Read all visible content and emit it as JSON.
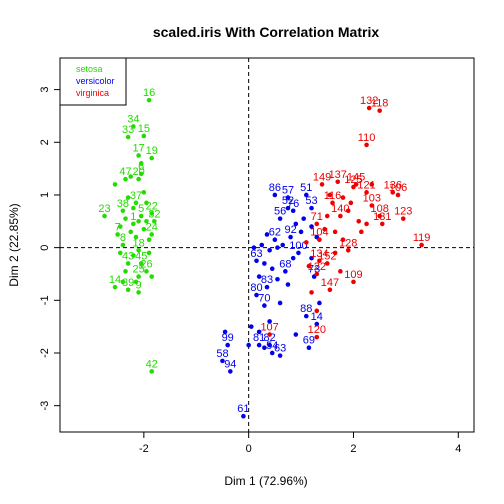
{
  "chart_data": {
    "type": "scatter",
    "title": "scaled.iris With Correlation Matrix",
    "xlabel": "Dim 1 (72.96%)",
    "ylabel": "Dim 2 (22.85%)",
    "xlim": [
      -3.6,
      4.3
    ],
    "ylim": [
      -3.5,
      3.6
    ],
    "xticks": [
      -2,
      0,
      2,
      4
    ],
    "yticks": [
      -3,
      -2,
      -1,
      0,
      1,
      2,
      3
    ],
    "reference_lines": {
      "x": 0,
      "y": 0,
      "style": "dashed"
    },
    "legend": {
      "position": "top-left",
      "entries": [
        {
          "label": "setosa",
          "color": "#22dd00"
        },
        {
          "label": "versicolor",
          "color": "#0000ee"
        },
        {
          "label": "virginica",
          "color": "#ee0000"
        }
      ]
    },
    "series": [
      {
        "name": "setosa",
        "color": "#22dd00",
        "points": [
          {
            "x": -1.9,
            "y": 2.8,
            "label": "16"
          },
          {
            "x": -2.2,
            "y": 2.3,
            "label": "34"
          },
          {
            "x": -2.3,
            "y": 2.1,
            "label": "33"
          },
          {
            "x": -2.0,
            "y": 2.12,
            "label": "15"
          },
          {
            "x": -2.1,
            "y": 1.75,
            "label": "17"
          },
          {
            "x": -1.85,
            "y": 1.7,
            "label": "19"
          },
          {
            "x": -2.35,
            "y": 1.3,
            "label": "47"
          },
          {
            "x": -2.1,
            "y": 1.3,
            "label": "20"
          },
          {
            "x": -2.05,
            "y": 1.4,
            "label": "6"
          },
          {
            "x": -2.4,
            "y": 0.7,
            "label": "38"
          },
          {
            "x": -2.75,
            "y": 0.6,
            "label": "23"
          },
          {
            "x": -2.15,
            "y": 0.85,
            "label": "37"
          },
          {
            "x": -2.05,
            "y": 0.6,
            "label": "5"
          },
          {
            "x": -1.85,
            "y": 0.65,
            "label": "22"
          },
          {
            "x": -1.8,
            "y": 0.5,
            "label": "32"
          },
          {
            "x": -2.2,
            "y": 0.45,
            "label": "1"
          },
          {
            "x": -2.5,
            "y": 0.25,
            "label": "7"
          },
          {
            "x": -1.85,
            "y": 0.25,
            "label": "24"
          },
          {
            "x": -2.4,
            "y": 0.05,
            "label": "8"
          },
          {
            "x": -2.1,
            "y": -0.05,
            "label": "18"
          },
          {
            "x": -2.3,
            "y": -0.3,
            "label": "43"
          },
          {
            "x": -2.05,
            "y": -0.3,
            "label": "45"
          },
          {
            "x": -2.1,
            "y": -0.55,
            "label": "25"
          },
          {
            "x": -1.95,
            "y": -0.45,
            "label": "26"
          },
          {
            "x": -2.55,
            "y": -0.75,
            "label": "14"
          },
          {
            "x": -2.3,
            "y": -0.8,
            "label": "39"
          },
          {
            "x": -2.1,
            "y": -0.85,
            "label": "9"
          },
          {
            "x": -1.85,
            "y": -2.35,
            "label": "42"
          },
          {
            "x": -2.25,
            "y": 1.35
          },
          {
            "x": -2.0,
            "y": 1.05
          },
          {
            "x": -2.3,
            "y": 0.95
          },
          {
            "x": -2.55,
            "y": 1.2
          },
          {
            "x": -1.95,
            "y": 0.85
          },
          {
            "x": -2.2,
            "y": 0.75
          },
          {
            "x": -2.35,
            "y": 0.55
          },
          {
            "x": -1.95,
            "y": 0.5
          },
          {
            "x": -2.1,
            "y": 0.5
          },
          {
            "x": -2.25,
            "y": 0.3
          },
          {
            "x": -2.0,
            "y": 0.35
          },
          {
            "x": -1.9,
            "y": 0.15
          },
          {
            "x": -2.45,
            "y": -0.1
          },
          {
            "x": -2.2,
            "y": -0.15
          },
          {
            "x": -1.9,
            "y": -0.1
          },
          {
            "x": -2.35,
            "y": -0.45
          },
          {
            "x": -2.15,
            "y": -0.65
          },
          {
            "x": -1.85,
            "y": -0.55
          },
          {
            "x": -2.4,
            "y": -0.65
          },
          {
            "x": -2.05,
            "y": 1.6
          },
          {
            "x": -2.45,
            "y": 0.4
          },
          {
            "x": -2.15,
            "y": 0.2
          }
        ]
      },
      {
        "name": "versicolor",
        "color": "#0000ee",
        "points": [
          {
            "x": 0.5,
            "y": 1.0,
            "label": "86"
          },
          {
            "x": 0.75,
            "y": 0.95,
            "label": "57"
          },
          {
            "x": 1.1,
            "y": 1.0,
            "label": "51"
          },
          {
            "x": 0.75,
            "y": 0.75,
            "label": "52"
          },
          {
            "x": 0.85,
            "y": 0.7,
            "label": "76"
          },
          {
            "x": 1.2,
            "y": 0.75,
            "label": "53"
          },
          {
            "x": 0.6,
            "y": 0.55,
            "label": "56"
          },
          {
            "x": 0.5,
            "y": 0.15,
            "label": "62"
          },
          {
            "x": 0.8,
            "y": 0.2,
            "label": "92"
          },
          {
            "x": 0.15,
            "y": -0.25,
            "label": "63"
          },
          {
            "x": 0.7,
            "y": -0.45,
            "label": "68"
          },
          {
            "x": 1.25,
            "y": -0.55,
            "label": "73"
          },
          {
            "x": 0.35,
            "y": -0.75,
            "label": "83"
          },
          {
            "x": 0.15,
            "y": -0.9,
            "label": "80"
          },
          {
            "x": 0.3,
            "y": -1.1,
            "label": "70"
          },
          {
            "x": 1.1,
            "y": -1.3,
            "label": "88"
          },
          {
            "x": 1.3,
            "y": -1.45,
            "label": "14"
          },
          {
            "x": -0.4,
            "y": -1.85,
            "label": "99"
          },
          {
            "x": -0.5,
            "y": -2.15,
            "label": "58"
          },
          {
            "x": -0.35,
            "y": -2.35,
            "label": "94"
          },
          {
            "x": 0.2,
            "y": -1.85,
            "label": "81"
          },
          {
            "x": 0.4,
            "y": -1.85,
            "label": "82"
          },
          {
            "x": 0.45,
            "y": -2.0,
            "label": "54"
          },
          {
            "x": 0.6,
            "y": -2.05,
            "label": "63"
          },
          {
            "x": 1.15,
            "y": -1.9,
            "label": "69"
          },
          {
            "x": -0.1,
            "y": -3.2,
            "label": "61"
          },
          {
            "x": 0.95,
            "y": -0.1,
            "label": "100"
          },
          {
            "x": 0.1,
            "y": 0.0
          },
          {
            "x": 0.25,
            "y": 0.05
          },
          {
            "x": 0.4,
            "y": -0.05
          },
          {
            "x": 0.55,
            "y": 0.0
          },
          {
            "x": 0.65,
            "y": 0.05
          },
          {
            "x": 0.3,
            "y": -0.3
          },
          {
            "x": 0.45,
            "y": -0.4
          },
          {
            "x": 0.2,
            "y": -0.55
          },
          {
            "x": 0.55,
            "y": -0.6
          },
          {
            "x": 0.85,
            "y": -0.2
          },
          {
            "x": 1.0,
            "y": 0.3
          },
          {
            "x": 1.2,
            "y": 0.4
          },
          {
            "x": 1.05,
            "y": 0.55
          },
          {
            "x": 0.9,
            "y": 0.45
          },
          {
            "x": 0.35,
            "y": 0.25
          },
          {
            "x": 1.3,
            "y": 0.2
          },
          {
            "x": 1.2,
            "y": -0.2
          },
          {
            "x": 0.75,
            "y": -0.7
          },
          {
            "x": 0.4,
            "y": -1.4
          },
          {
            "x": 0.05,
            "y": -1.5
          },
          {
            "x": 0.2,
            "y": -1.6
          },
          {
            "x": -0.45,
            "y": -1.6
          },
          {
            "x": 0.9,
            "y": -1.65
          },
          {
            "x": 0.0,
            "y": -1.85
          },
          {
            "x": 1.35,
            "y": -1.05
          },
          {
            "x": 0.6,
            "y": -1.05
          },
          {
            "x": 0.3,
            "y": -1.9
          }
        ]
      },
      {
        "name": "virginica",
        "color": "#ee0000",
        "points": [
          {
            "x": 2.3,
            "y": 2.65,
            "label": "132"
          },
          {
            "x": 2.5,
            "y": 2.6,
            "label": "118"
          },
          {
            "x": 2.25,
            "y": 1.95,
            "label": "110"
          },
          {
            "x": 1.4,
            "y": 1.2,
            "label": "149"
          },
          {
            "x": 1.7,
            "y": 1.25,
            "label": "137"
          },
          {
            "x": 2.05,
            "y": 1.2,
            "label": "145"
          },
          {
            "x": 2.0,
            "y": 1.15,
            "label": "125"
          },
          {
            "x": 2.75,
            "y": 1.05,
            "label": "136"
          },
          {
            "x": 2.85,
            "y": 1.0,
            "label": "106"
          },
          {
            "x": 2.25,
            "y": 1.05,
            "label": "121"
          },
          {
            "x": 2.35,
            "y": 0.8,
            "label": "103"
          },
          {
            "x": 2.5,
            "y": 0.6,
            "label": "108"
          },
          {
            "x": 2.95,
            "y": 0.55,
            "label": "123"
          },
          {
            "x": 2.55,
            "y": 0.45,
            "label": "131"
          },
          {
            "x": 3.3,
            "y": 0.05,
            "label": "119"
          },
          {
            "x": 1.6,
            "y": 0.85,
            "label": "116"
          },
          {
            "x": 1.75,
            "y": 0.6,
            "label": "140"
          },
          {
            "x": 1.3,
            "y": 0.45,
            "label": "71"
          },
          {
            "x": 1.35,
            "y": 0.15,
            "label": "104"
          },
          {
            "x": 1.9,
            "y": -0.05,
            "label": "128"
          },
          {
            "x": 1.35,
            "y": -0.25,
            "label": "134"
          },
          {
            "x": 1.5,
            "y": -0.3,
            "label": "152"
          },
          {
            "x": 1.3,
            "y": -0.5,
            "label": "122"
          },
          {
            "x": 2.0,
            "y": -0.65,
            "label": "109"
          },
          {
            "x": 1.55,
            "y": -0.8,
            "label": "147"
          },
          {
            "x": 0.4,
            "y": -1.65,
            "label": "107"
          },
          {
            "x": 1.3,
            "y": -1.7,
            "label": "120"
          },
          {
            "x": 1.65,
            "y": 0.3
          },
          {
            "x": 1.8,
            "y": 0.95
          },
          {
            "x": 1.9,
            "y": 0.7
          },
          {
            "x": 2.1,
            "y": 0.5
          },
          {
            "x": 1.55,
            "y": 1.0
          },
          {
            "x": 1.95,
            "y": 0.85
          },
          {
            "x": 2.15,
            "y": 0.3
          },
          {
            "x": 2.25,
            "y": 0.45
          },
          {
            "x": 1.5,
            "y": 0.6
          },
          {
            "x": 1.65,
            "y": -0.1
          },
          {
            "x": 1.8,
            "y": 0.15
          },
          {
            "x": 1.45,
            "y": 0.35
          },
          {
            "x": 1.15,
            "y": -0.35
          },
          {
            "x": 1.75,
            "y": -0.45
          },
          {
            "x": 1.2,
            "y": -0.85
          },
          {
            "x": 1.3,
            "y": -1.2
          },
          {
            "x": 2.35,
            "y": 1.2
          },
          {
            "x": 1.1,
            "y": 0.1
          }
        ]
      }
    ]
  }
}
